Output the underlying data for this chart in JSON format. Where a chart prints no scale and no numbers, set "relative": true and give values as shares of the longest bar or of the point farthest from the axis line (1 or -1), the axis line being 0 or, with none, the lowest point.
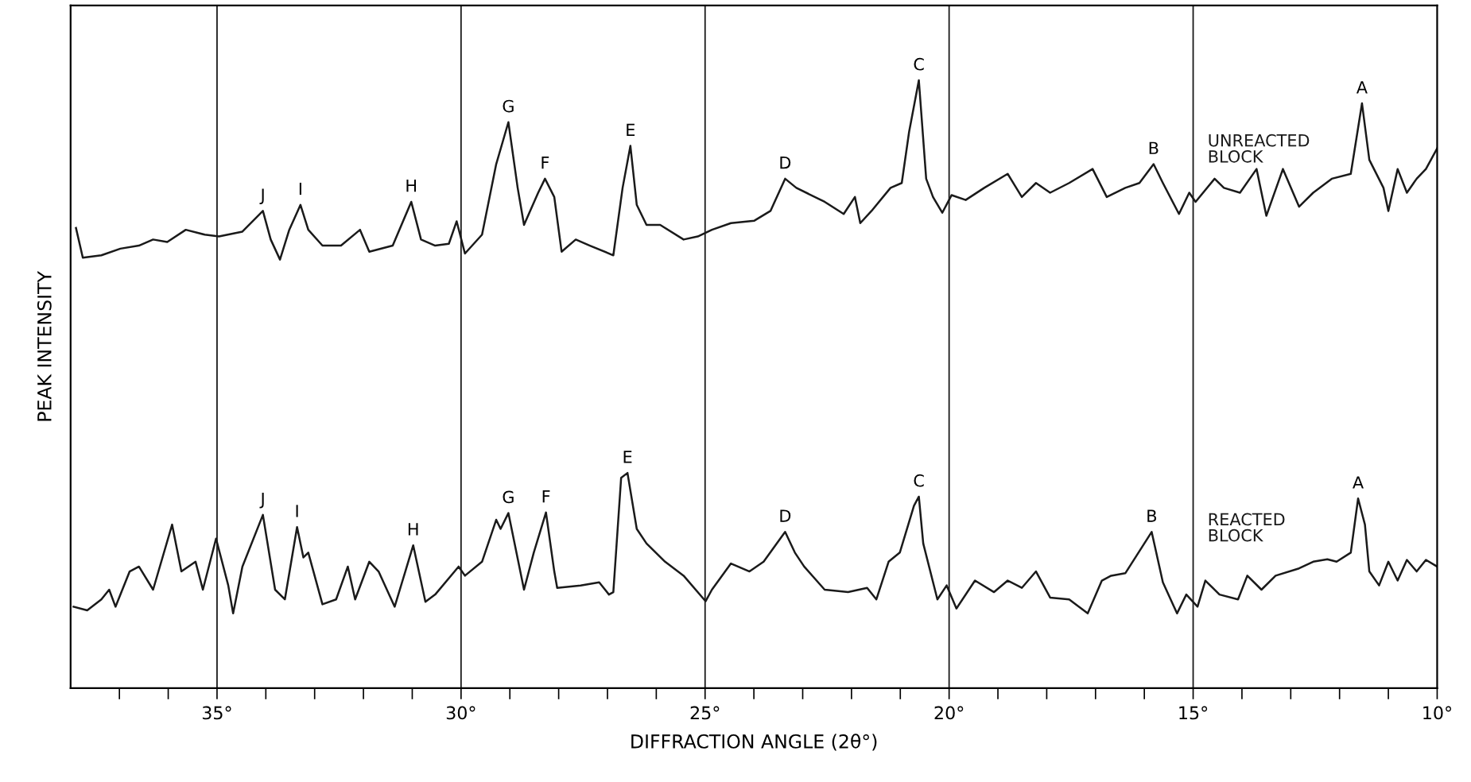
{
  "chart_data": {
    "type": "line",
    "relative": true,
    "xlabel": "DIFFRACTION ANGLE (2θ°)",
    "ylabel": "PEAK INTENSITY",
    "xlim": [
      38,
      10
    ],
    "xticks": [
      {
        "value": 37,
        "label": null
      },
      {
        "value": 36,
        "label": null
      },
      {
        "value": 35,
        "label": "35°"
      },
      {
        "value": 34,
        "label": null
      },
      {
        "value": 33,
        "label": null
      },
      {
        "value": 32,
        "label": null
      },
      {
        "value": 31,
        "label": null
      },
      {
        "value": 30,
        "label": "30°"
      },
      {
        "value": 29,
        "label": null
      },
      {
        "value": 28,
        "label": null
      },
      {
        "value": 27,
        "label": null
      },
      {
        "value": 26,
        "label": null
      },
      {
        "value": 25,
        "label": "25°"
      },
      {
        "value": 24,
        "label": null
      },
      {
        "value": 23,
        "label": null
      },
      {
        "value": 22,
        "label": null
      },
      {
        "value": 21,
        "label": null
      },
      {
        "value": 20,
        "label": "20°"
      },
      {
        "value": 19,
        "label": null
      },
      {
        "value": 18,
        "label": null
      },
      {
        "value": 17,
        "label": null
      },
      {
        "value": 16,
        "label": null
      },
      {
        "value": 15,
        "label": "15°"
      },
      {
        "value": 14,
        "label": null
      },
      {
        "value": 13,
        "label": null
      },
      {
        "value": 12,
        "label": null
      },
      {
        "value": 11,
        "label": null
      },
      {
        "value": 10,
        "label": "10°"
      }
    ],
    "ref_lines": [
      {
        "axis": "x",
        "value": 35,
        "color": "#1a1a1a"
      },
      {
        "axis": "x",
        "value": 30,
        "color": "#1a1a1a"
      },
      {
        "axis": "x",
        "value": 25,
        "color": "#1a1a1a"
      },
      {
        "axis": "x",
        "value": 20,
        "color": "#1a1a1a"
      },
      {
        "axis": "x",
        "value": 15,
        "color": "#1a1a1a"
      }
    ],
    "series": [
      {
        "name": "UNREACTED\nBLOCK",
        "color": "#1a1a1a",
        "x": [
          37.89,
          37.75,
          37.37,
          36.98,
          36.6,
          36.31,
          36.02,
          35.64,
          35.25,
          34.96,
          34.48,
          34.06,
          33.9,
          33.71,
          33.52,
          33.29,
          33.13,
          32.84,
          32.46,
          32.07,
          31.88,
          31.4,
          31.02,
          30.82,
          30.53,
          30.25,
          30.09,
          29.92,
          29.57,
          29.28,
          29.03,
          28.84,
          28.71,
          28.42,
          28.28,
          28.09,
          27.94,
          27.65,
          27.36,
          26.88,
          26.69,
          26.53,
          26.4,
          26.2,
          25.92,
          25.44,
          25.15,
          24.86,
          24.47,
          23.99,
          23.66,
          23.36,
          23.13,
          22.55,
          22.16,
          21.93,
          21.82,
          21.59,
          21.2,
          20.97,
          20.82,
          20.62,
          20.47,
          20.33,
          20.14,
          19.95,
          19.66,
          19.28,
          18.8,
          18.51,
          18.22,
          17.93,
          17.54,
          17.06,
          16.77,
          16.39,
          16.1,
          15.81,
          15.62,
          15.29,
          15.08,
          14.95,
          14.56,
          14.37,
          14.04,
          13.7,
          13.5,
          13.16,
          12.83,
          12.54,
          12.16,
          11.77,
          11.54,
          11.39,
          11.1,
          11.0,
          10.81,
          10.62,
          10.42,
          10.23,
          10.0
        ],
        "values": [
          0.757,
          0.708,
          0.712,
          0.723,
          0.728,
          0.738,
          0.734,
          0.754,
          0.746,
          0.743,
          0.751,
          0.785,
          0.738,
          0.705,
          0.754,
          0.795,
          0.754,
          0.728,
          0.728,
          0.754,
          0.718,
          0.728,
          0.8,
          0.738,
          0.728,
          0.731,
          0.768,
          0.715,
          0.746,
          0.862,
          0.931,
          0.823,
          0.762,
          0.815,
          0.838,
          0.808,
          0.718,
          0.738,
          0.728,
          0.712,
          0.823,
          0.892,
          0.795,
          0.762,
          0.762,
          0.738,
          0.743,
          0.754,
          0.765,
          0.769,
          0.785,
          0.838,
          0.823,
          0.8,
          0.78,
          0.808,
          0.765,
          0.785,
          0.823,
          0.831,
          0.915,
          1.0,
          0.838,
          0.808,
          0.782,
          0.811,
          0.803,
          0.823,
          0.846,
          0.808,
          0.831,
          0.815,
          0.831,
          0.854,
          0.808,
          0.823,
          0.831,
          0.862,
          0.831,
          0.78,
          0.815,
          0.8,
          0.838,
          0.823,
          0.815,
          0.854,
          0.777,
          0.854,
          0.792,
          0.815,
          0.838,
          0.846,
          0.962,
          0.869,
          0.823,
          0.785,
          0.854,
          0.815,
          0.838,
          0.854,
          0.888
        ]
      },
      {
        "name": "REACTED\nBLOCK",
        "color": "#1a1a1a",
        "x": [
          37.94,
          37.66,
          37.37,
          37.21,
          37.08,
          36.79,
          36.6,
          36.31,
          35.92,
          35.73,
          35.44,
          35.29,
          35.02,
          34.77,
          34.67,
          34.48,
          34.06,
          33.81,
          33.61,
          33.36,
          33.23,
          33.13,
          32.84,
          32.56,
          32.32,
          32.17,
          31.88,
          31.69,
          31.36,
          30.98,
          30.73,
          30.53,
          30.05,
          29.92,
          29.57,
          29.28,
          29.19,
          29.03,
          28.71,
          28.51,
          28.26,
          28.09,
          28.03,
          27.55,
          27.17,
          26.97,
          26.88,
          26.72,
          26.59,
          26.4,
          26.2,
          25.82,
          25.44,
          24.99,
          24.86,
          24.47,
          24.09,
          23.8,
          23.36,
          23.16,
          22.97,
          22.55,
          22.07,
          21.68,
          21.49,
          21.24,
          21.01,
          20.72,
          20.62,
          20.53,
          20.24,
          20.05,
          19.85,
          19.47,
          19.08,
          18.8,
          18.51,
          18.22,
          17.93,
          17.54,
          17.16,
          16.87,
          16.68,
          16.39,
          15.85,
          15.62,
          15.33,
          15.14,
          14.91,
          14.75,
          14.46,
          14.08,
          13.89,
          13.6,
          13.31,
          12.83,
          12.54,
          12.25,
          12.06,
          11.77,
          11.62,
          11.48,
          11.39,
          11.19,
          11.0,
          10.81,
          10.62,
          10.42,
          10.23,
          10.0
        ],
        "values": [
          0.134,
          0.128,
          0.146,
          0.162,
          0.134,
          0.192,
          0.2,
          0.162,
          0.269,
          0.192,
          0.208,
          0.162,
          0.246,
          0.169,
          0.123,
          0.2,
          0.285,
          0.162,
          0.146,
          0.265,
          0.215,
          0.223,
          0.138,
          0.146,
          0.2,
          0.146,
          0.208,
          0.192,
          0.134,
          0.235,
          0.142,
          0.154,
          0.2,
          0.185,
          0.208,
          0.277,
          0.262,
          0.288,
          0.162,
          0.223,
          0.289,
          0.192,
          0.165,
          0.169,
          0.174,
          0.154,
          0.158,
          0.346,
          0.354,
          0.262,
          0.238,
          0.208,
          0.185,
          0.143,
          0.162,
          0.205,
          0.192,
          0.208,
          0.257,
          0.223,
          0.2,
          0.162,
          0.158,
          0.165,
          0.146,
          0.208,
          0.223,
          0.3,
          0.315,
          0.238,
          0.146,
          0.169,
          0.131,
          0.177,
          0.158,
          0.177,
          0.165,
          0.192,
          0.149,
          0.146,
          0.123,
          0.177,
          0.185,
          0.189,
          0.257,
          0.174,
          0.123,
          0.154,
          0.134,
          0.177,
          0.154,
          0.146,
          0.185,
          0.162,
          0.185,
          0.197,
          0.208,
          0.212,
          0.208,
          0.223,
          0.312,
          0.269,
          0.192,
          0.169,
          0.208,
          0.177,
          0.211,
          0.192,
          0.211,
          0.2
        ]
      }
    ],
    "annotations": [
      {
        "text": "A",
        "x": 11.54,
        "y": 0.962
      },
      {
        "text": "B",
        "x": 15.81,
        "y": 0.862
      },
      {
        "text": "C",
        "x": 20.62,
        "y": 1.0
      },
      {
        "text": "D",
        "x": 23.36,
        "y": 0.838
      },
      {
        "text": "E",
        "x": 26.53,
        "y": 0.892
      },
      {
        "text": "F",
        "x": 28.28,
        "y": 0.838
      },
      {
        "text": "G",
        "x": 29.03,
        "y": 0.931
      },
      {
        "text": "H",
        "x": 31.02,
        "y": 0.8
      },
      {
        "text": "I",
        "x": 33.29,
        "y": 0.795
      },
      {
        "text": "J",
        "x": 34.06,
        "y": 0.785
      },
      {
        "text": "A",
        "x": 11.62,
        "y": 0.312
      },
      {
        "text": "B",
        "x": 15.85,
        "y": 0.257
      },
      {
        "text": "C",
        "x": 20.62,
        "y": 0.315
      },
      {
        "text": "D",
        "x": 23.36,
        "y": 0.257
      },
      {
        "text": "E",
        "x": 26.59,
        "y": 0.354
      },
      {
        "text": "F",
        "x": 28.26,
        "y": 0.289
      },
      {
        "text": "G",
        "x": 29.03,
        "y": 0.288
      },
      {
        "text": "H",
        "x": 30.98,
        "y": 0.235
      },
      {
        "text": "I",
        "x": 33.36,
        "y": 0.265
      },
      {
        "text": "J",
        "x": 34.06,
        "y": 0.285
      }
    ]
  }
}
